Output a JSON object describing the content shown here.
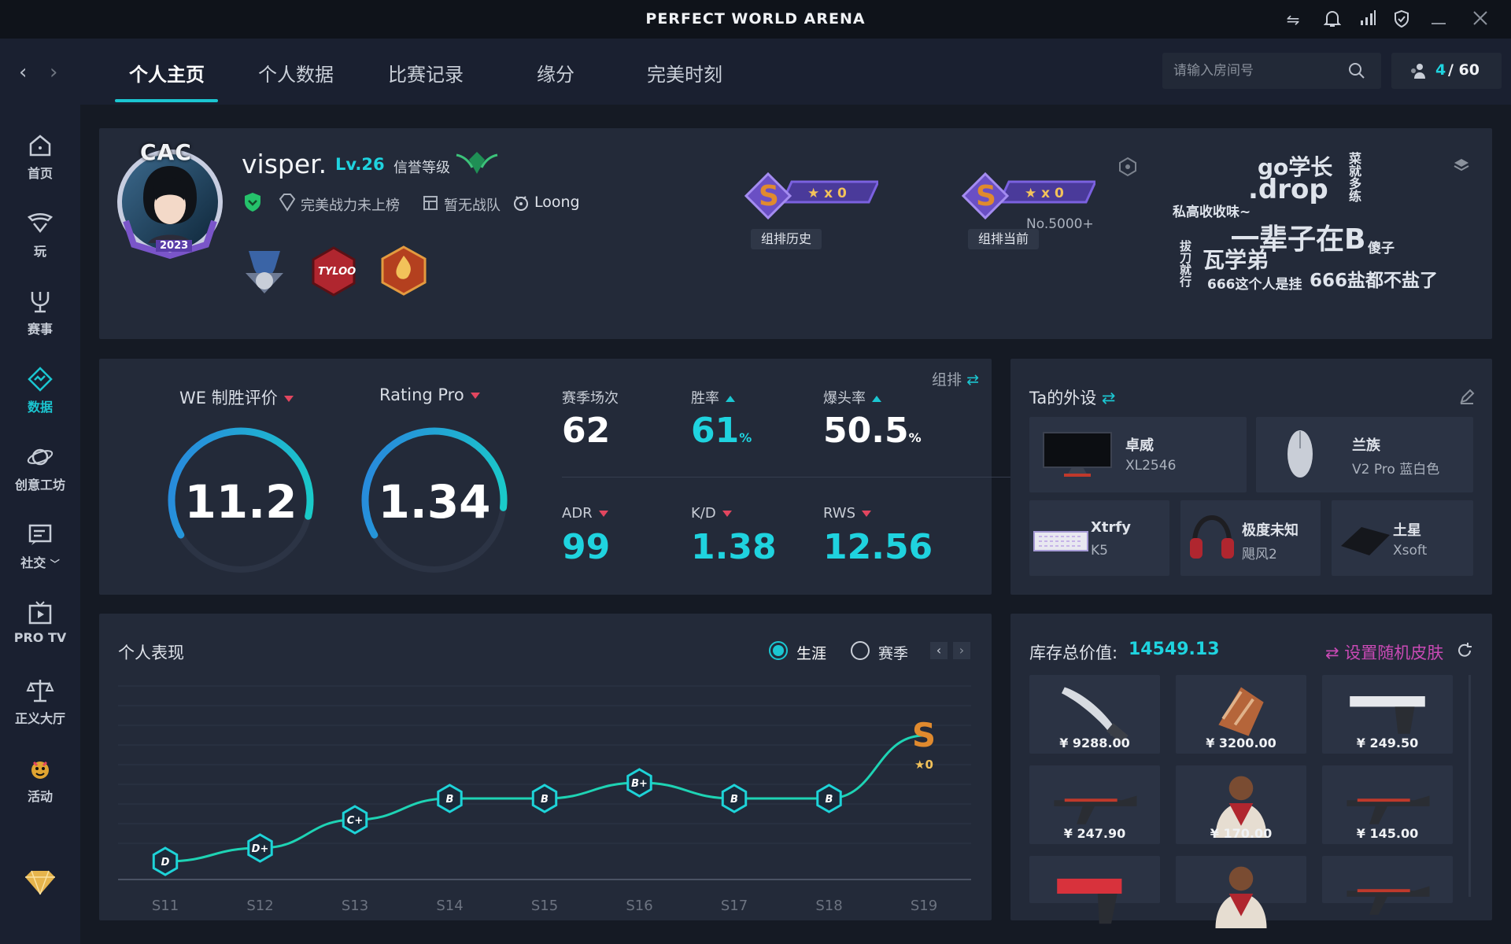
{
  "app": {
    "title": "PERFECT WORLD ARENA"
  },
  "nav": {
    "tabs": [
      {
        "label": "个人主页"
      },
      {
        "label": "个人数据"
      },
      {
        "label": "比赛记录"
      },
      {
        "label": "缘分"
      },
      {
        "label": "完美时刻"
      }
    ],
    "search_placeholder": "请输入房间号",
    "room_count": "4",
    "room_max": "/ 60"
  },
  "sidebar": {
    "items": [
      {
        "label": "首页",
        "icon": "home-icon"
      },
      {
        "label": "玩",
        "icon": "play-icon"
      },
      {
        "label": "赛事",
        "icon": "trophy-icon"
      },
      {
        "label": "数据",
        "icon": "data-icon"
      },
      {
        "label": "创意工坊",
        "icon": "workshop-icon"
      },
      {
        "label": "社交",
        "icon": "social-icon"
      },
      {
        "label": "PRO TV",
        "icon": "tv-icon"
      },
      {
        "label": "正义大厅",
        "icon": "justice-icon"
      },
      {
        "label": "活动",
        "icon": "event-icon"
      }
    ]
  },
  "profile": {
    "avatar_top_text": "CAC",
    "avatar_year": "2023",
    "name": "visper.",
    "level": "Lv.26",
    "credit_label": "信誉等级",
    "power_rank": "完美战力未上榜",
    "team": "暂无战队",
    "zodiac": "Loong",
    "badge_2": "TYLOO",
    "rank_history": {
      "grade": "S",
      "stars": "★ x 0",
      "label": "组排历史"
    },
    "rank_current": {
      "grade": "S",
      "stars": "★ x 0",
      "rank": "No.5000+",
      "label": "组排当前"
    }
  },
  "wordcloud": [
    {
      "text": "go学长",
      "color": "#4a78c9"
    },
    {
      "text": ".drop",
      "color": "#6a4fc4"
    },
    {
      "text": "菜就多练",
      "color": "#2f8f86"
    },
    {
      "text": "私高收收味~",
      "color": "#b2455e"
    },
    {
      "text": "一辈子在B",
      "color": "#c4cad3"
    },
    {
      "text": "傻子",
      "color": "#3f66b3"
    },
    {
      "text": "瓦学弟",
      "color": "#2aa5a0"
    },
    {
      "text": "拔刀就行",
      "color": "#4b3f9c"
    },
    {
      "text": "666这个人是挂",
      "color": "#b8bec8"
    },
    {
      "text": "666盐都不盐了",
      "color": "#c2485a"
    }
  ],
  "stats": {
    "mode_label": "组排",
    "we_label": "WE 制胜评价",
    "we_value": "11.2",
    "we_fraction": 0.62,
    "rating_label": "Rating Pro",
    "rating_value": "1.34",
    "rating_fraction": 0.6,
    "matches_label": "赛季场次",
    "matches_value": "62",
    "winrate_label": "胜率",
    "winrate_value": "61",
    "headshot_label": "爆头率",
    "headshot_value": "50.5",
    "percent": "%",
    "adr_label": "ADR",
    "adr_value": "99",
    "kd_label": "K/D",
    "kd_value": "1.38",
    "rws_label": "RWS",
    "rws_value": "12.56"
  },
  "gear": {
    "title": "Ta的外设",
    "items": [
      {
        "brand": "卓威",
        "model": "XL2546",
        "icon": "monitor-icon"
      },
      {
        "brand": "兰族",
        "model": "V2 Pro 蓝白色",
        "icon": "mouse-icon"
      },
      {
        "brand": "Xtrfy",
        "model": "K5",
        "icon": "keyboard-icon"
      },
      {
        "brand": "极度未知",
        "model": "飓风2",
        "icon": "headset-icon"
      },
      {
        "brand": "土星",
        "model": "Xsoft",
        "icon": "mousepad-icon"
      }
    ]
  },
  "performance": {
    "title": "个人表现",
    "option_career": "生涯",
    "option_season": "赛季",
    "chart_data": {
      "type": "line",
      "x": [
        "S11",
        "S12",
        "S13",
        "S14",
        "S15",
        "S16",
        "S17",
        "S18",
        "S19"
      ],
      "grades": [
        "D",
        "D+",
        "C+",
        "B",
        "B",
        "B+",
        "B",
        "B",
        "S"
      ],
      "last_stars": "★0"
    }
  },
  "inventory": {
    "total_label": "库存总价值:",
    "total_value": "14549.13",
    "random_skin_label": "设置随机皮肤",
    "items": [
      {
        "price": "¥ 9288.00",
        "icon": "knife-icon"
      },
      {
        "price": "¥ 3200.00",
        "icon": "gloves-icon"
      },
      {
        "price": "¥ 249.50",
        "icon": "pistol-icon"
      },
      {
        "price": "¥ 247.90",
        "icon": "rifle-icon"
      },
      {
        "price": "¥ 170.00",
        "icon": "agent-icon"
      },
      {
        "price": "¥ 145.00",
        "icon": "rifle-icon"
      },
      {
        "price": "",
        "icon": "deagle-icon"
      },
      {
        "price": "",
        "icon": "agent-icon"
      },
      {
        "price": "",
        "icon": "rifle-icon"
      }
    ]
  }
}
